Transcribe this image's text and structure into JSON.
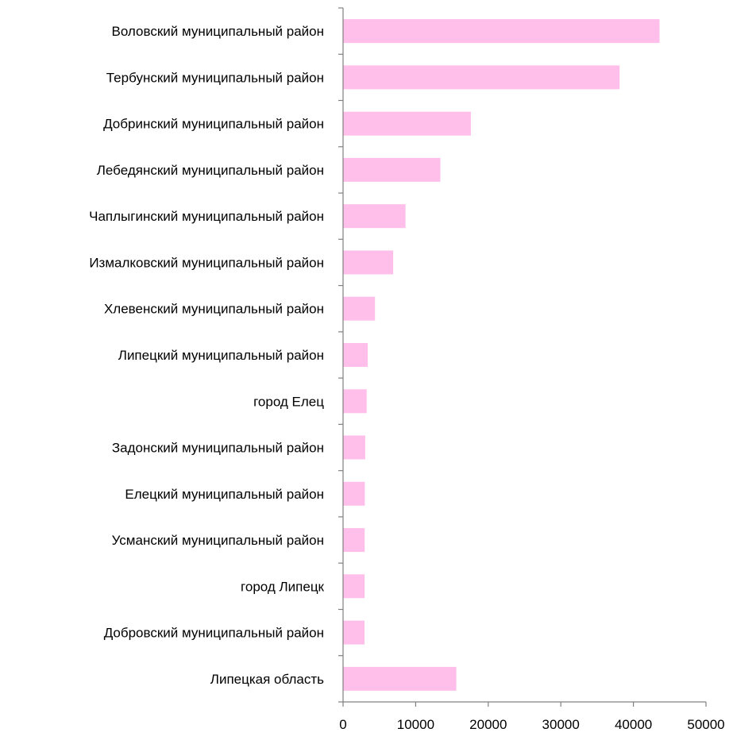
{
  "chart_data": {
    "type": "bar",
    "orientation": "horizontal",
    "title": "",
    "xlabel": "",
    "ylabel": "",
    "xlim": [
      0,
      50000
    ],
    "x_ticks": [
      0,
      10000,
      20000,
      30000,
      40000,
      50000
    ],
    "x_tick_labels": [
      "0",
      "10000",
      "20000",
      "30000",
      "40000",
      "50000"
    ],
    "grid": false,
    "legend": "none",
    "bar_color": "#ffbfea",
    "categories": [
      "Воловский муниципальный район",
      "Тербунский муниципальный район",
      "Добринский муниципальный район",
      "Лебедянский муниципальный район",
      "Чаплыгинский муниципальный район",
      "Измалковский муниципальный район",
      "Хлевенский муниципальный район",
      "Липецкий муниципальный район",
      "город Елец",
      "Задонский муниципальный район",
      "Елецкий муниципальный район",
      "Усманский муниципальный район",
      "город Липецк",
      "Добровский муниципальный район",
      "Липецкая область"
    ],
    "values": [
      43600,
      38100,
      17600,
      13400,
      8600,
      6900,
      4400,
      3400,
      3250,
      3050,
      3000,
      2980,
      2960,
      2950,
      15600
    ]
  }
}
